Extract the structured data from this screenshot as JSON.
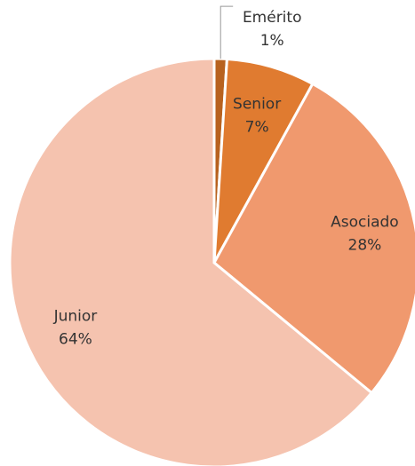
{
  "chart_data": {
    "type": "pie",
    "categories": [
      "Emérito",
      "Senior",
      "Asociado",
      "Junior"
    ],
    "values": [
      1,
      7,
      28,
      64
    ],
    "value_labels": [
      "1%",
      "7%",
      "28%",
      "64%"
    ],
    "colors": [
      "#b8621f",
      "#e07b30",
      "#f0996e",
      "#f5c3af"
    ]
  }
}
